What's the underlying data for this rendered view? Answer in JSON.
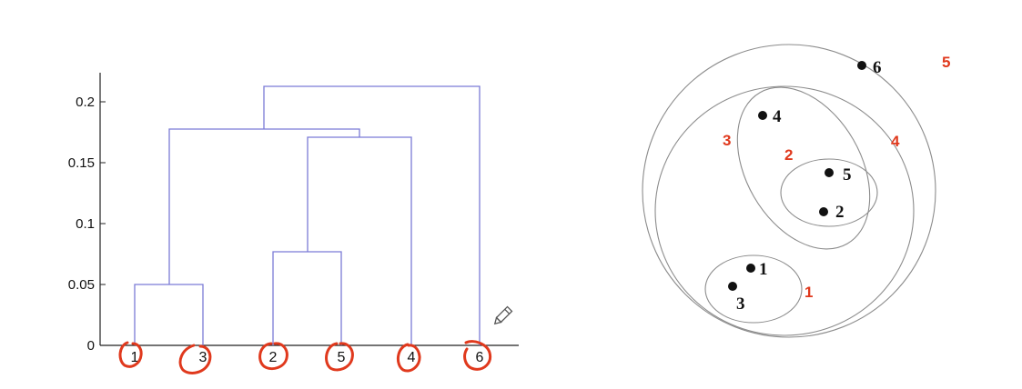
{
  "colors": {
    "dendrogram_line": "#7b7bd6",
    "axis": "#222222",
    "annotation": "#e0391d",
    "cluster_circle": "#8c8c8c",
    "point": "#111111"
  },
  "dendrogram": {
    "y_ticks": [
      "0",
      "0.05",
      "0.1",
      "0.15",
      "0.2"
    ],
    "leaf_order": [
      "1",
      "3",
      "2",
      "5",
      "4",
      "6"
    ],
    "merges": [
      {
        "left": "1",
        "right": "3",
        "height": 0.05
      },
      {
        "left": "2",
        "right": "5",
        "height": 0.076
      },
      {
        "left": "2,5",
        "right": "4",
        "height": 0.171
      },
      {
        "left": "1,3",
        "right": "2,5,4",
        "height": 0.177
      },
      {
        "left": "1,3,2,5,4",
        "right": "6",
        "height": 0.213
      }
    ],
    "ylim": [
      0,
      0.22
    ]
  },
  "nested_clusters": {
    "points": [
      "1",
      "2",
      "3",
      "4",
      "5",
      "6"
    ],
    "cluster_labels": [
      "1",
      "2",
      "3",
      "4",
      "5"
    ]
  }
}
